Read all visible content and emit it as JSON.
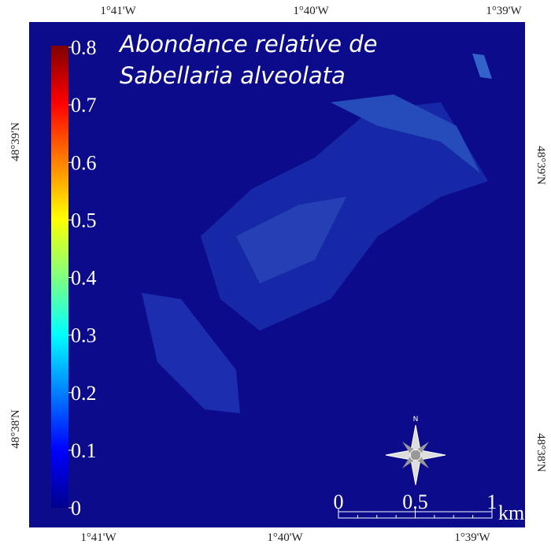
{
  "title": [
    "Abondance relative de",
    "Sabellaria alveolata"
  ],
  "top_labels": [
    "1°41'W",
    "1°40'W",
    "1°39'W"
  ],
  "bottom_labels": [
    "1°41'W",
    "1°40'W",
    "1°39'W"
  ],
  "left_labels": [
    "48°39'N",
    "48°38'N"
  ],
  "right_labels": [
    "48°39'N",
    "48°38'N"
  ],
  "colorbar": {
    "lim": [
      0,
      0.8
    ],
    "ticks": [
      0,
      0.1,
      0.2,
      0.3,
      0.4,
      0.5,
      0.6,
      0.7,
      0.8
    ]
  },
  "scale_bar": {
    "lim": [
      0,
      1
    ],
    "ticks": [
      0,
      0.5,
      1
    ],
    "unit": "km"
  },
  "compass": "N"
}
